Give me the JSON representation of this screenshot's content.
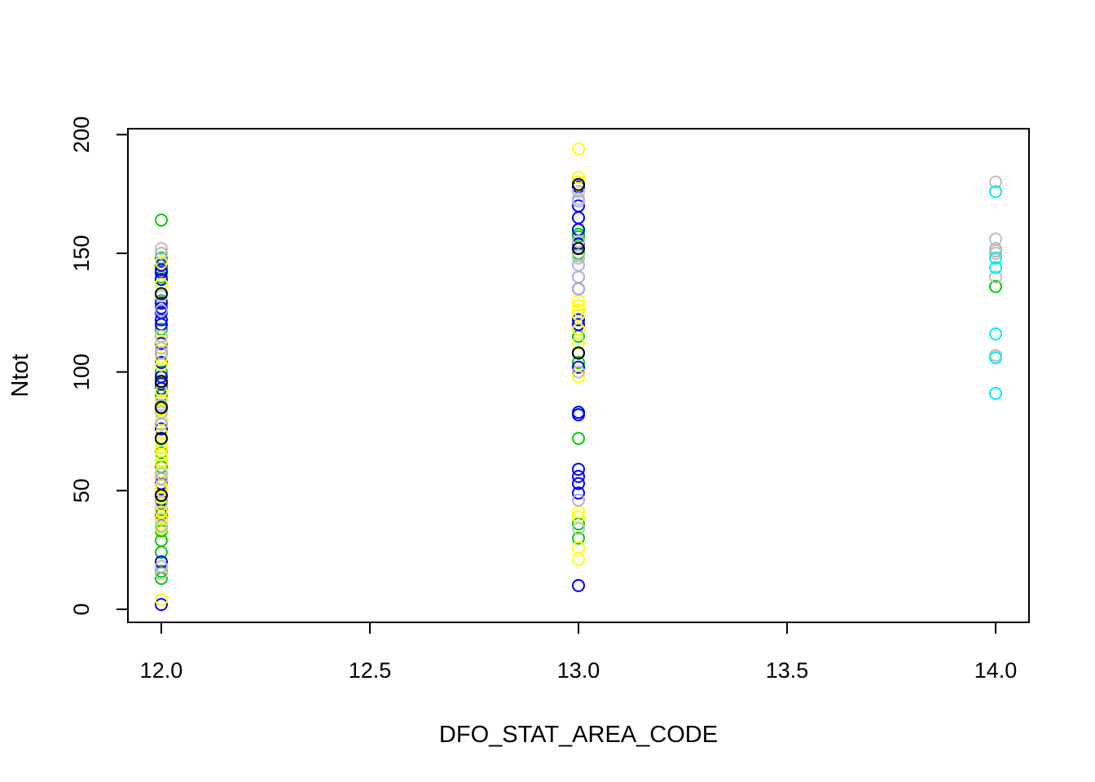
{
  "chart_data": {
    "type": "scatter",
    "title": "",
    "xlabel": "DFO_STAT_AREA_CODE",
    "ylabel": "Ntot",
    "xlim": [
      11.92,
      14.08
    ],
    "ylim": [
      -5.5,
      202.5
    ],
    "x_ticks": [
      12.0,
      12.5,
      13.0,
      13.5,
      14.0
    ],
    "x_tick_labels": [
      "12.0",
      "12.5",
      "13.0",
      "13.5",
      "14.0"
    ],
    "y_ticks": [
      0,
      50,
      100,
      150,
      200
    ],
    "y_tick_labels": [
      "0",
      "50",
      "100",
      "150",
      "200"
    ],
    "grid": false,
    "legend": "none",
    "series": [
      {
        "color": "#00CD00",
        "points": [
          [
            12,
            164
          ],
          [
            12,
            150
          ],
          [
            12,
            148
          ],
          [
            12,
            145
          ],
          [
            12,
            142
          ],
          [
            12,
            140
          ],
          [
            12,
            130
          ],
          [
            12,
            118
          ],
          [
            12,
            100
          ],
          [
            12,
            90
          ],
          [
            12,
            85
          ],
          [
            12,
            80
          ],
          [
            12,
            72
          ],
          [
            12,
            66
          ],
          [
            12,
            60
          ],
          [
            12,
            55
          ],
          [
            12,
            48
          ],
          [
            12,
            42
          ],
          [
            12,
            38
          ],
          [
            12,
            35
          ],
          [
            12,
            34
          ],
          [
            12,
            33
          ],
          [
            12,
            29
          ],
          [
            12,
            24
          ],
          [
            12,
            16
          ],
          [
            12,
            13
          ],
          [
            13,
            160
          ],
          [
            13,
            158
          ],
          [
            13,
            157
          ],
          [
            13,
            150
          ],
          [
            13,
            118
          ],
          [
            13,
            115
          ],
          [
            13,
            104
          ],
          [
            13,
            82
          ],
          [
            13,
            72
          ],
          [
            13,
            36
          ],
          [
            13,
            30
          ],
          [
            14,
            136
          ]
        ]
      },
      {
        "color": "#0000FF",
        "points": [
          [
            12,
            145
          ],
          [
            12,
            143
          ],
          [
            12,
            142
          ],
          [
            12,
            139
          ],
          [
            12,
            129
          ],
          [
            12,
            127
          ],
          [
            12,
            125
          ],
          [
            12,
            122
          ],
          [
            12,
            120
          ],
          [
            12,
            112
          ],
          [
            12,
            108
          ],
          [
            12,
            104
          ],
          [
            12,
            98
          ],
          [
            12,
            95
          ],
          [
            12,
            93
          ],
          [
            12,
            88
          ],
          [
            12,
            86
          ],
          [
            12,
            76
          ],
          [
            12,
            68
          ],
          [
            12,
            62
          ],
          [
            12,
            58
          ],
          [
            12,
            53
          ],
          [
            12,
            50
          ],
          [
            12,
            46
          ],
          [
            12,
            40
          ],
          [
            12,
            38
          ],
          [
            12,
            20
          ],
          [
            12,
            18
          ],
          [
            12,
            2
          ],
          [
            13,
            178
          ],
          [
            13,
            170
          ],
          [
            13,
            165
          ],
          [
            13,
            160
          ],
          [
            13,
            154
          ],
          [
            13,
            140
          ],
          [
            13,
            122
          ],
          [
            13,
            120
          ],
          [
            13,
            108
          ],
          [
            13,
            102
          ],
          [
            13,
            83
          ],
          [
            13,
            82
          ],
          [
            13,
            59
          ],
          [
            13,
            56
          ],
          [
            13,
            53
          ],
          [
            13,
            49
          ],
          [
            13,
            10
          ]
        ]
      },
      {
        "color": "#FFFF00",
        "points": [
          [
            12,
            146
          ],
          [
            12,
            137
          ],
          [
            12,
            115
          ],
          [
            12,
            113
          ],
          [
            12,
            110
          ],
          [
            12,
            106
          ],
          [
            12,
            103
          ],
          [
            12,
            96
          ],
          [
            12,
            92
          ],
          [
            12,
            88
          ],
          [
            12,
            84
          ],
          [
            12,
            80
          ],
          [
            12,
            78
          ],
          [
            12,
            74
          ],
          [
            12,
            70
          ],
          [
            12,
            68
          ],
          [
            12,
            65
          ],
          [
            12,
            62
          ],
          [
            12,
            58
          ],
          [
            12,
            55
          ],
          [
            12,
            52
          ],
          [
            12,
            50
          ],
          [
            12,
            47
          ],
          [
            12,
            44
          ],
          [
            12,
            41
          ],
          [
            12,
            38
          ],
          [
            12,
            36
          ],
          [
            12,
            34
          ],
          [
            12,
            4
          ],
          [
            13,
            194
          ],
          [
            13,
            182
          ],
          [
            13,
            180
          ],
          [
            13,
            130
          ],
          [
            13,
            128
          ],
          [
            13,
            126
          ],
          [
            13,
            124
          ],
          [
            13,
            118
          ],
          [
            13,
            112
          ],
          [
            13,
            100
          ],
          [
            13,
            98
          ],
          [
            13,
            41
          ],
          [
            13,
            39
          ],
          [
            13,
            26
          ],
          [
            13,
            21
          ]
        ]
      },
      {
        "color": "#BEBEBE",
        "points": [
          [
            12,
            152
          ],
          [
            12,
            150
          ],
          [
            12,
            132
          ],
          [
            12,
            115
          ],
          [
            12,
            110
          ],
          [
            12,
            86
          ],
          [
            12,
            83
          ],
          [
            12,
            57
          ],
          [
            12,
            45
          ],
          [
            12,
            18
          ],
          [
            12,
            15
          ],
          [
            13,
            176
          ],
          [
            13,
            173
          ],
          [
            13,
            155
          ],
          [
            13,
            149
          ],
          [
            13,
            148
          ],
          [
            13,
            140
          ],
          [
            13,
            100
          ],
          [
            13,
            34
          ],
          [
            14,
            180
          ],
          [
            14,
            156
          ],
          [
            14,
            152
          ],
          [
            14,
            151
          ],
          [
            14,
            150
          ],
          [
            14,
            140
          ],
          [
            14,
            107
          ],
          [
            14,
            106
          ]
        ]
      },
      {
        "color": "#000000",
        "points": [
          [
            12,
            133
          ],
          [
            12,
            96
          ],
          [
            12,
            85
          ],
          [
            12,
            72
          ],
          [
            12,
            48
          ],
          [
            13,
            179
          ],
          [
            13,
            152
          ],
          [
            13,
            135
          ],
          [
            13,
            108
          ]
        ]
      },
      {
        "color": "#ADADE6",
        "points": [
          [
            12,
            126
          ],
          [
            12,
            108
          ],
          [
            12,
            78
          ],
          [
            12,
            55
          ],
          [
            12,
            35
          ],
          [
            13,
            172
          ],
          [
            13,
            145
          ],
          [
            13,
            135
          ],
          [
            13,
            46
          ]
        ]
      },
      {
        "color": "#00EEEE",
        "points": [
          [
            14,
            176
          ],
          [
            14,
            148
          ],
          [
            14,
            144
          ],
          [
            14,
            116
          ],
          [
            14,
            106
          ],
          [
            14,
            91
          ]
        ]
      }
    ]
  }
}
